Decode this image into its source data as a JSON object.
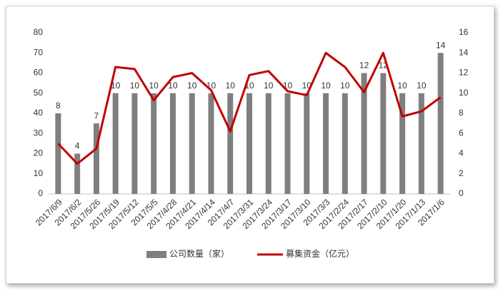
{
  "chart_data": {
    "type": "bar-line",
    "categories": [
      "2017/6/9",
      "2017/6/2",
      "2017/5/26",
      "2017/5/19",
      "2017/5/12",
      "2017/5/5",
      "2017/4/28",
      "2017/4/21",
      "2017/4/14",
      "2017/4/7",
      "2017/3/31",
      "2017/3/24",
      "2017/3/17",
      "2017/3/10",
      "2017/3/3",
      "2017/2/24",
      "2017/2/17",
      "2017/2/10",
      "2017/1/20",
      "2017/1/13",
      "2017/1/6"
    ],
    "series": [
      {
        "name": "公司数量（家）",
        "type": "bar",
        "axis": "y2",
        "color": "#7f7f7f",
        "values": [
          8,
          4,
          7,
          10,
          10,
          10,
          10,
          10,
          10,
          10,
          10,
          10,
          10,
          10,
          10,
          10,
          12,
          12,
          10,
          10,
          14
        ]
      },
      {
        "name": "募集资金（亿元）",
        "type": "line",
        "axis": "y",
        "color": "#c00000",
        "values": [
          25,
          15,
          22.5,
          63,
          62,
          46.5,
          58,
          60,
          51.5,
          31,
          59,
          61,
          51,
          49,
          70,
          63,
          50.5,
          70,
          38.5,
          41,
          48
        ]
      }
    ],
    "ylim": [
      0,
      80
    ],
    "yticks": [
      0,
      10,
      20,
      30,
      40,
      50,
      60,
      70,
      80
    ],
    "y2lim": [
      0,
      16
    ],
    "y2ticks": [
      0,
      2,
      4,
      6,
      8,
      10,
      12,
      14,
      16
    ],
    "legend": "bottom"
  }
}
